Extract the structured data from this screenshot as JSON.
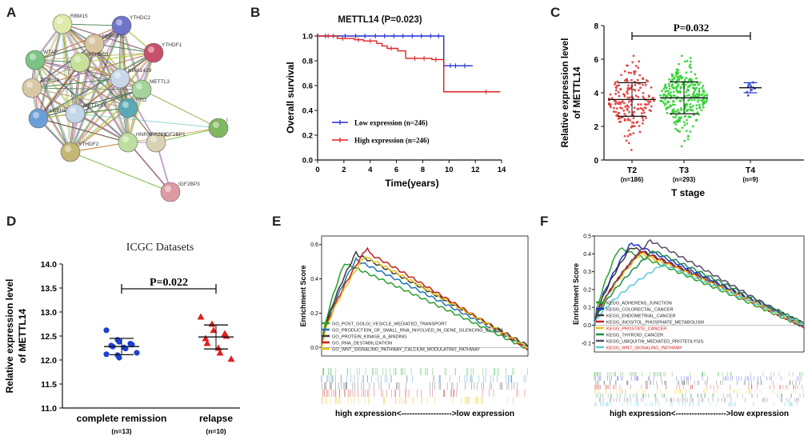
{
  "panels": {
    "A": {
      "letter": "A",
      "nodes": [
        {
          "label": "RBM15",
          "color": "#dfe9a8"
        },
        {
          "label": "YTHDC2",
          "color": "#6f74c9"
        },
        {
          "label": "HNRNPC",
          "color": "#d9c6a0"
        },
        {
          "label": "YTHDF1",
          "color": "#c8506a"
        },
        {
          "label": "WTAP",
          "color": "#7cc486"
        },
        {
          "label": "YTHDC1",
          "color": "#c7e09a"
        },
        {
          "label": "ZC3H13",
          "color": "#d8c9a5"
        },
        {
          "label": "KIAA1429",
          "color": "#c9d7e8"
        },
        {
          "label": "METTL3",
          "color": "#a4d49c"
        },
        {
          "label": "ALKBH5",
          "color": "#6b9fd8"
        },
        {
          "label": "METTL14",
          "color": "#c2d6ea"
        },
        {
          "label": "FTO",
          "color": "#5ba9b4"
        },
        {
          "label": "IGF2BP1",
          "color": "#d9d2b4"
        },
        {
          "label": "HNRNPA2B1",
          "color": "#bde0a0"
        },
        {
          "label": "YTHDF2",
          "color": "#c4b774"
        },
        {
          "label": "I",
          "color": "#7fb85f"
        },
        {
          "label": "IGF2BP3",
          "color": "#e09aa4"
        }
      ]
    },
    "B": {
      "letter": "B",
      "chart_data": {
        "type": "line",
        "title": "METTL14 (P=0.023)",
        "xlabel": "Time(years)",
        "ylabel": "Overall survival",
        "xlim": [
          0,
          14
        ],
        "ylim": [
          0,
          1.0
        ],
        "xticks": [
          "0",
          "2",
          "4",
          "6",
          "8",
          "10",
          "12",
          "14"
        ],
        "yticks": [
          "0.0",
          "0.2",
          "0.4",
          "0.6",
          "0.8",
          "1.0"
        ],
        "series": [
          {
            "name": "Low expression  (n=246)",
            "color": "#1f2fd0",
            "x": [
              0,
              9.6,
              9.6,
              11.8,
              11.8
            ],
            "y": [
              1.0,
              1.0,
              0.76,
              0.76,
              0.76
            ]
          },
          {
            "name": "High expression  (n=246)",
            "color": "#e02020",
            "x": [
              0,
              1.5,
              1.5,
              2.8,
              2.8,
              3.5,
              3.5,
              4.5,
              4.5,
              4.9,
              4.9,
              5.3,
              5.3,
              6.1,
              6.1,
              6.7,
              6.7,
              8.7,
              8.7,
              9.6,
              9.6,
              13.9
            ],
            "y": [
              1.0,
              1.0,
              0.98,
              0.98,
              0.97,
              0.97,
              0.96,
              0.96,
              0.94,
              0.94,
              0.92,
              0.92,
              0.9,
              0.9,
              0.88,
              0.88,
              0.82,
              0.82,
              0.81,
              0.81,
              0.55,
              0.55
            ]
          }
        ]
      }
    },
    "C": {
      "letter": "C",
      "chart_data": {
        "type": "scatter",
        "ylabel": "Relative expression level\nof METTL14",
        "ylabel_line1": "Relative expression level",
        "ylabel_line2": "of METTL14",
        "xlabel": "T stage",
        "pvalue": "P=0.032",
        "ylim": [
          0,
          8
        ],
        "yticks": [
          "0",
          "2",
          "4",
          "6",
          "8"
        ],
        "groups": [
          {
            "name": "T2",
            "n": "(n=186)",
            "color": "#e23a3a",
            "mean": 3.6,
            "sd": 1.0,
            "count": 186
          },
          {
            "name": "T3",
            "n": "(n=293)",
            "color": "#2fd02f",
            "mean": 3.7,
            "sd": 0.95,
            "count": 293
          },
          {
            "name": "T4",
            "n": "(n=9)",
            "color": "#2a3ad0",
            "mean": 4.3,
            "sd": 0.3,
            "count": 9
          }
        ]
      }
    },
    "D": {
      "letter": "D",
      "chart_data": {
        "type": "scatter",
        "title": "ICGC Datasets",
        "ylabel_line1": "Relative expression level",
        "ylabel_line2": "of METTL14",
        "pvalue": "P=0.022",
        "ylim": [
          11.0,
          14.0
        ],
        "yticks": [
          "11.0",
          "11.5",
          "12.0",
          "12.5",
          "13.0",
          "13.5",
          "14.0"
        ],
        "groups": [
          {
            "name": "complete remission",
            "n": "(n=13)",
            "color": "#1f3fd0",
            "mean": 12.28,
            "sd": 0.17,
            "values": [
              12.62,
              12.42,
              12.38,
              12.34,
              12.32,
              12.3,
              12.28,
              12.26,
              12.24,
              12.15,
              12.12,
              12.1,
              12.05
            ]
          },
          {
            "name": "relapse",
            "n": "(n=10)",
            "color": "#e02020",
            "mean": 12.48,
            "sd": 0.25,
            "values": [
              12.9,
              12.75,
              12.62,
              12.55,
              12.5,
              12.45,
              12.35,
              12.25,
              12.15,
              12.02
            ]
          }
        ]
      }
    },
    "E": {
      "letter": "E",
      "chart_data": {
        "type": "line",
        "ylabel": "Enrichment Score",
        "xlabel": "high expression<------------------->low expression",
        "ylim": [
          -0.05,
          0.65
        ],
        "yticks": [
          "0.0",
          "0.2",
          "0.4",
          "0.6"
        ],
        "series": [
          {
            "name": "GO_POST_GOLGI_VESICLE_MEDIATED_TRANSPORT",
            "color": "#2ca02c",
            "peak": 0.52
          },
          {
            "name": "GO_PRODUCTION_OF_SMALL_RNA_INVOLVED_IN_GENE_SILENCING_BY_RNA",
            "color": "#1f77b4",
            "peak": 0.53
          },
          {
            "name": "GO_PROTEIN_KINASE_A_BINDING",
            "color": "#3a3a3a",
            "peak": 0.56
          },
          {
            "name": "GO_RNA_DESTABILIZATION",
            "color": "#c81e1e",
            "peak": 0.59
          },
          {
            "name": "GO_WNT_SIGNALING_PATHWAY_CALCIUM_MODULATING_PATHWAY",
            "color": "#e8c21a",
            "peak": 0.55
          }
        ]
      }
    },
    "F": {
      "letter": "F",
      "chart_data": {
        "type": "line",
        "ylabel": "Enrichment Score",
        "xlabel": "high expression<------------------->low expression",
        "ylim": [
          -0.15,
          0.5
        ],
        "yticks": [
          "-0.1",
          "0.0",
          "0.1",
          "0.2",
          "0.3",
          "0.4",
          "0.5"
        ],
        "series": [
          {
            "name": "KEGG_ADHERENS_JUNCTION",
            "color": "#2ca02c",
            "text_color": "#222222",
            "peak": 0.44
          },
          {
            "name": "KEGG_COLORECTAL_CANCER",
            "color": "#1f2fd0",
            "text_color": "#222222",
            "peak": 0.46
          },
          {
            "name": "KEGG_ENDOMETRIAL_CANCER",
            "color": "#3a3a3a",
            "text_color": "#222222",
            "peak": 0.43
          },
          {
            "name": "KEGG_INOSITOL_PHOSPHATE_METABOLISM",
            "color": "#c81e1e",
            "text_color": "#222222",
            "peak": 0.42
          },
          {
            "name": "KEGG_PROSTATE_CANCER",
            "color": "#e8c21a",
            "text_color": "#d01818",
            "peak": 0.4
          },
          {
            "name": "KEGG_THYROID_CANCER",
            "color": "#1f8c4a",
            "text_color": "#222222",
            "peak": 0.41
          },
          {
            "name": "KEGG_UBIQUITIN_MEDIATED_PROTEOLYSIS",
            "color": "#5a4a6a",
            "text_color": "#222222",
            "peak": 0.48
          },
          {
            "name": "KEGG_WNT_SIGNALING_PATHWAY",
            "color": "#5ac8d8",
            "text_color": "#d01818",
            "peak": 0.34
          }
        ]
      }
    }
  }
}
